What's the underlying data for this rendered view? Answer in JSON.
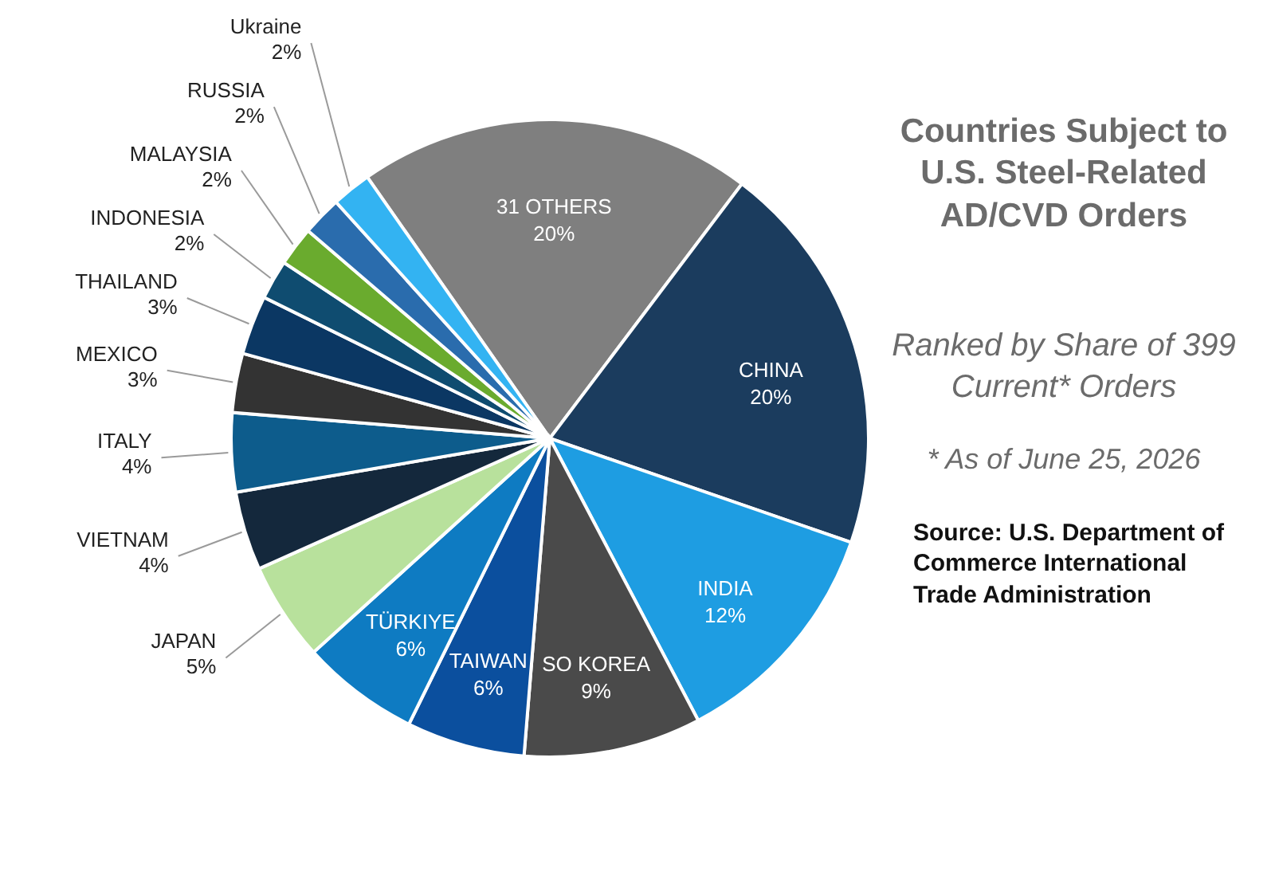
{
  "chart_data": {
    "type": "pie",
    "title": "Countries Subject to U.S. Steel-Related AD/CVD Orders",
    "subtitle": "Ranked by Share of 399 Current* Orders",
    "annotations": [
      "* As of June 25, 2026",
      "Source: U.S. Department of Commerce International Trade Administration"
    ],
    "categories": [
      "31 OTHERS",
      "CHINA",
      "INDIA",
      "SO KOREA",
      "TAIWAN",
      "TÜRKIYE",
      "JAPAN",
      "VIETNAM",
      "ITALY",
      "MEXICO",
      "THAILAND",
      "INDONESIA",
      "MALAYSIA",
      "RUSSIA",
      "Ukraine"
    ],
    "values": [
      20,
      20,
      12,
      9,
      6,
      6,
      5,
      4,
      4,
      3,
      3,
      2,
      2,
      2,
      2
    ],
    "colors": [
      "#7f7f7f",
      "#1b3c5e",
      "#1e9de2",
      "#4a4a4a",
      "#0b4f9e",
      "#0e7bc2",
      "#b8e19c",
      "#14283c",
      "#0d5c8c",
      "#333333",
      "#0b3763",
      "#0f4c70",
      "#6aab2e",
      "#2a6cad",
      "#33b3f2"
    ],
    "value_labels": [
      "20%",
      "20%",
      "12%",
      "9%",
      "6%",
      "6%",
      "5%",
      "4%",
      "4%",
      "3%",
      "3%",
      "2%",
      "2%",
      "2%",
      "2%"
    ]
  }
}
